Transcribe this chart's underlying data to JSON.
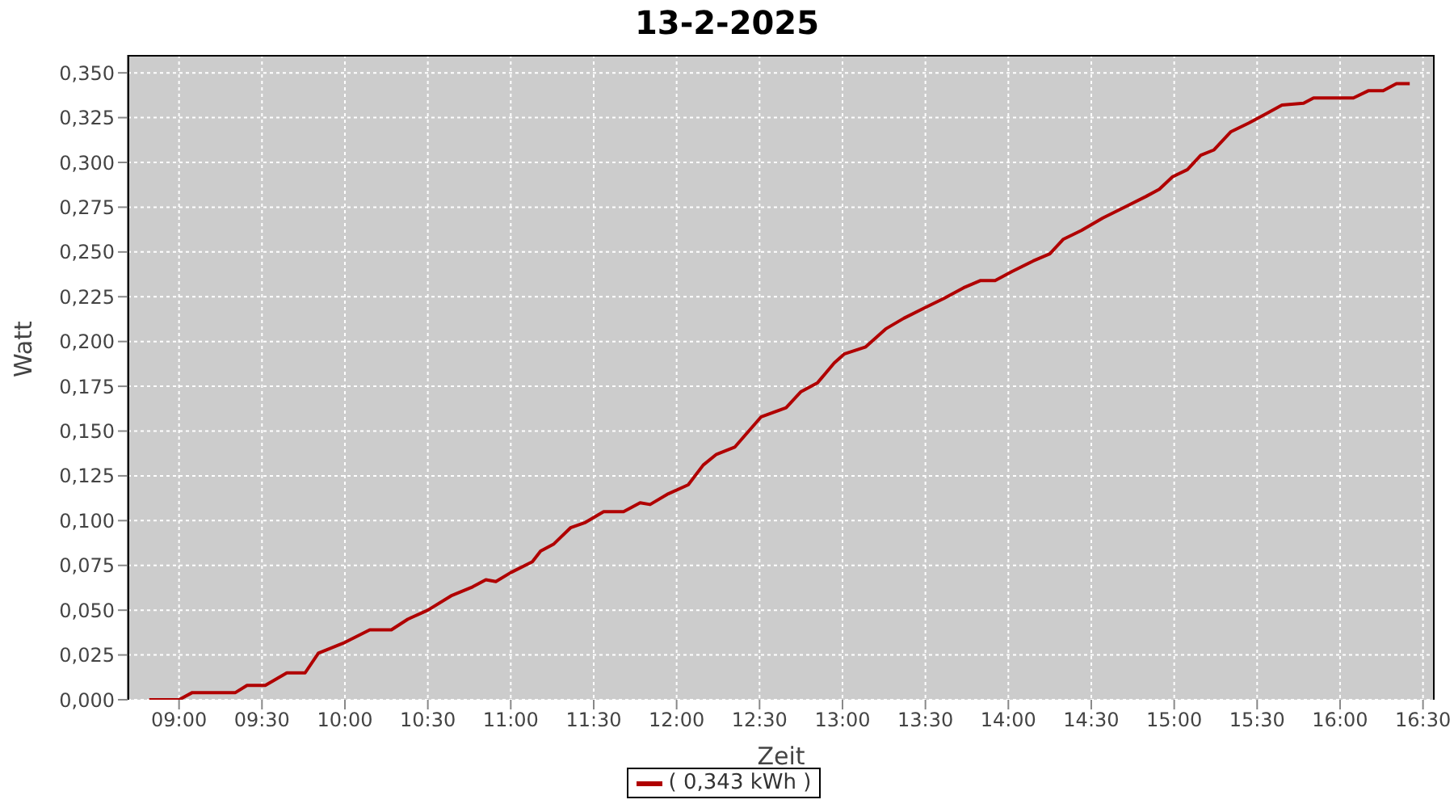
{
  "chart_data": {
    "type": "line",
    "title": "13-2-2025",
    "xlabel": "Zeit",
    "ylabel": "Watt",
    "x": [
      8.82,
      9.0,
      9.08,
      9.16,
      9.24,
      9.34,
      9.41,
      9.52,
      9.65,
      9.76,
      9.84,
      10.0,
      10.15,
      10.28,
      10.38,
      10.5,
      10.64,
      10.77,
      10.85,
      10.91,
      11.0,
      11.13,
      11.18,
      11.26,
      11.36,
      11.45,
      11.56,
      11.68,
      11.78,
      11.84,
      11.95,
      12.07,
      12.16,
      12.24,
      12.35,
      12.51,
      12.66,
      12.75,
      12.85,
      12.95,
      13.01,
      13.14,
      13.26,
      13.37,
      13.5,
      13.61,
      13.73,
      13.83,
      13.92,
      14.02,
      14.15,
      14.25,
      14.33,
      14.44,
      14.57,
      14.7,
      14.83,
      14.91,
      14.99,
      15.08,
      15.16,
      15.24,
      15.34,
      15.45,
      15.55,
      15.65,
      15.78,
      15.84,
      16.08,
      16.17,
      16.26,
      16.34,
      16.42
    ],
    "series": [
      {
        "name": "( 0,343 kWh )",
        "color": "#b00000",
        "values": [
          0,
          0,
          0.004,
          0.004,
          0.004,
          0.004,
          0.008,
          0.008,
          0.015,
          0.015,
          0.026,
          0.032,
          0.039,
          0.039,
          0.045,
          0.05,
          0.058,
          0.063,
          0.067,
          0.066,
          0.071,
          0.077,
          0.083,
          0.087,
          0.096,
          0.099,
          0.105,
          0.105,
          0.11,
          0.109,
          0.115,
          0.12,
          0.131,
          0.137,
          0.141,
          0.158,
          0.163,
          0.172,
          0.177,
          0.188,
          0.193,
          0.197,
          0.207,
          0.213,
          0.219,
          0.224,
          0.23,
          0.234,
          0.234,
          0.239,
          0.245,
          0.249,
          0.257,
          0.262,
          0.269,
          0.275,
          0.281,
          0.285,
          0.292,
          0.296,
          0.304,
          0.307,
          0.317,
          0.322,
          0.327,
          0.332,
          0.333,
          0.336,
          0.336,
          0.34,
          0.34,
          0.344,
          0.344
        ]
      }
    ],
    "xlim": [
      8.69,
      16.57
    ],
    "xticks": [
      {
        "value": 9,
        "label": "09:00"
      },
      {
        "value": 9.5,
        "label": "09:30"
      },
      {
        "value": 10,
        "label": "10:00"
      },
      {
        "value": 10.5,
        "label": "10:30"
      },
      {
        "value": 11,
        "label": "11:00"
      },
      {
        "value": 11.5,
        "label": "11:30"
      },
      {
        "value": 12,
        "label": "12:00"
      },
      {
        "value": 12.5,
        "label": "12:30"
      },
      {
        "value": 13,
        "label": "13:00"
      },
      {
        "value": 13.5,
        "label": "13:30"
      },
      {
        "value": 14,
        "label": "14:00"
      },
      {
        "value": 14.5,
        "label": "14:30"
      },
      {
        "value": 15,
        "label": "15:00"
      },
      {
        "value": 15.5,
        "label": "15:30"
      },
      {
        "value": 16,
        "label": "16:00"
      },
      {
        "value": 16.5,
        "label": "16:30"
      }
    ],
    "ylim": [
      0,
      0.36
    ],
    "yticks": [
      {
        "value": 0,
        "label": "0,000"
      },
      {
        "value": 0.025,
        "label": "0,025"
      },
      {
        "value": 0.05,
        "label": "0,050"
      },
      {
        "value": 0.075,
        "label": "0,075"
      },
      {
        "value": 0.1,
        "label": "0,100"
      },
      {
        "value": 0.125,
        "label": "0,125"
      },
      {
        "value": 0.15,
        "label": "0,150"
      },
      {
        "value": 0.175,
        "label": "0,175"
      },
      {
        "value": 0.2,
        "label": "0,200"
      },
      {
        "value": 0.225,
        "label": "0,225"
      },
      {
        "value": 0.25,
        "label": "0,250"
      },
      {
        "value": 0.275,
        "label": "0,275"
      },
      {
        "value": 0.3,
        "label": "0,300"
      },
      {
        "value": 0.325,
        "label": "0,325"
      },
      {
        "value": 0.35,
        "label": "0,350"
      }
    ],
    "grid": true,
    "legend": "bottom",
    "marker": "none",
    "line_style": "solid"
  }
}
